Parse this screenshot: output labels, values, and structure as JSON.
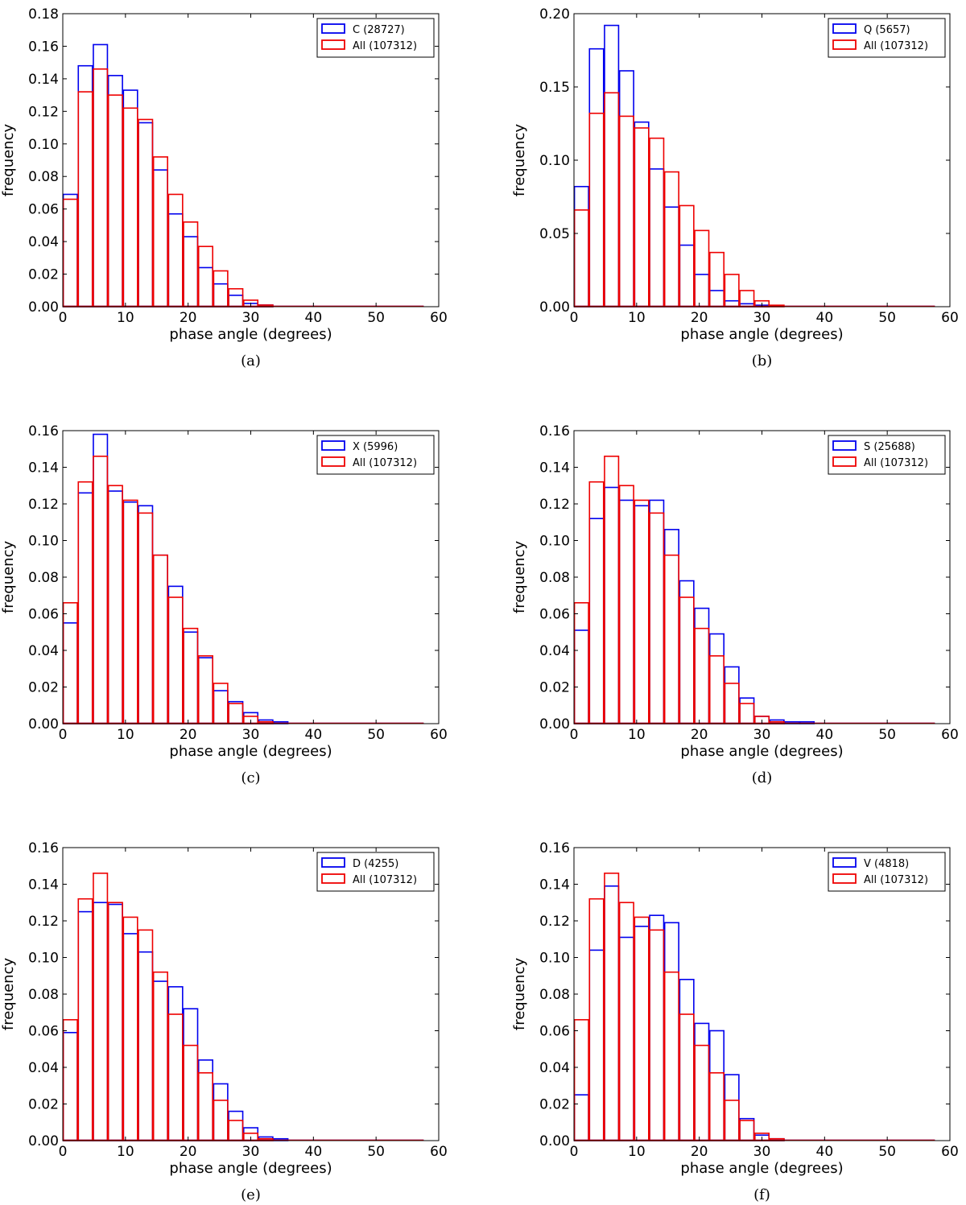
{
  "figure": {
    "bin_edges": [
      0,
      2.4,
      4.8,
      7.2,
      9.6,
      12,
      14.4,
      16.8,
      19.2,
      21.6,
      24,
      26.4,
      28.8,
      31.2,
      33.6,
      36,
      38.4,
      40.8,
      43.2,
      45.6,
      48,
      50.4,
      52.8,
      55.2,
      57.6
    ],
    "colors": {
      "blue": "#0000ee",
      "red": "#ee0000"
    }
  },
  "chart_data": [
    {
      "type": "bar",
      "panel_label": "(a)",
      "xlabel": "phase angle (degrees)",
      "ylabel": "frequency",
      "xlim": [
        0,
        60
      ],
      "ylim": [
        0,
        0.18
      ],
      "xticks": [
        0,
        10,
        20,
        30,
        40,
        50,
        60
      ],
      "yticks": [
        "0.00",
        "0.02",
        "0.04",
        "0.06",
        "0.08",
        "0.10",
        "0.12",
        "0.14",
        "0.16",
        "0.18"
      ],
      "legend_position": "top-right",
      "series": [
        {
          "name": "C (28727)",
          "color": "blue",
          "values": [
            0.069,
            0.148,
            0.161,
            0.142,
            0.133,
            0.113,
            0.084,
            0.057,
            0.043,
            0.024,
            0.014,
            0.007,
            0.002,
            0.001,
            0,
            0,
            0,
            0,
            0,
            0,
            0,
            0,
            0,
            0
          ]
        },
        {
          "name": "All (107312)",
          "color": "red",
          "values": [
            0.066,
            0.132,
            0.146,
            0.13,
            0.122,
            0.115,
            0.092,
            0.069,
            0.052,
            0.037,
            0.022,
            0.011,
            0.004,
            0.001,
            0,
            0,
            0,
            0,
            0,
            0,
            0,
            0,
            0,
            0
          ]
        }
      ]
    },
    {
      "type": "bar",
      "panel_label": "(b)",
      "xlabel": "phase angle (degrees)",
      "ylabel": "frequency",
      "xlim": [
        0,
        60
      ],
      "ylim": [
        0,
        0.2
      ],
      "xticks": [
        0,
        10,
        20,
        30,
        40,
        50,
        60
      ],
      "yticks": [
        "0.00",
        "0.05",
        "0.10",
        "0.15",
        "0.20"
      ],
      "legend_position": "top-right",
      "series": [
        {
          "name": "Q (5657)",
          "color": "blue",
          "values": [
            0.082,
            0.176,
            0.192,
            0.161,
            0.126,
            0.094,
            0.068,
            0.042,
            0.022,
            0.011,
            0.004,
            0.002,
            0.001,
            0,
            0,
            0,
            0,
            0,
            0,
            0,
            0,
            0,
            0,
            0
          ]
        },
        {
          "name": "All (107312)",
          "color": "red",
          "values": [
            0.066,
            0.132,
            0.146,
            0.13,
            0.122,
            0.115,
            0.092,
            0.069,
            0.052,
            0.037,
            0.022,
            0.011,
            0.004,
            0.001,
            0,
            0,
            0,
            0,
            0,
            0,
            0,
            0,
            0,
            0
          ]
        }
      ]
    },
    {
      "type": "bar",
      "panel_label": "(c)",
      "xlabel": "phase angle (degrees)",
      "ylabel": "frequency",
      "xlim": [
        0,
        60
      ],
      "ylim": [
        0,
        0.16
      ],
      "xticks": [
        0,
        10,
        20,
        30,
        40,
        50,
        60
      ],
      "yticks": [
        "0.00",
        "0.02",
        "0.04",
        "0.06",
        "0.08",
        "0.10",
        "0.12",
        "0.14",
        "0.16"
      ],
      "legend_position": "top-right",
      "series": [
        {
          "name": "X (5996)",
          "color": "blue",
          "values": [
            0.055,
            0.126,
            0.158,
            0.127,
            0.121,
            0.119,
            0.092,
            0.075,
            0.05,
            0.036,
            0.018,
            0.012,
            0.006,
            0.002,
            0.001,
            0,
            0,
            0,
            0,
            0,
            0,
            0,
            0,
            0
          ]
        },
        {
          "name": "All (107312)",
          "color": "red",
          "values": [
            0.066,
            0.132,
            0.146,
            0.13,
            0.122,
            0.115,
            0.092,
            0.069,
            0.052,
            0.037,
            0.022,
            0.011,
            0.004,
            0.001,
            0,
            0,
            0,
            0,
            0,
            0,
            0,
            0,
            0,
            0
          ]
        }
      ]
    },
    {
      "type": "bar",
      "panel_label": "(d)",
      "xlabel": "phase angle (degrees)",
      "ylabel": "frequency",
      "xlim": [
        0,
        60
      ],
      "ylim": [
        0,
        0.16
      ],
      "xticks": [
        0,
        10,
        20,
        30,
        40,
        50,
        60
      ],
      "yticks": [
        "0.00",
        "0.02",
        "0.04",
        "0.06",
        "0.08",
        "0.10",
        "0.12",
        "0.14",
        "0.16"
      ],
      "legend_position": "top-right",
      "series": [
        {
          "name": "S (25688)",
          "color": "blue",
          "values": [
            0.051,
            0.112,
            0.129,
            0.122,
            0.119,
            0.122,
            0.106,
            0.078,
            0.063,
            0.049,
            0.031,
            0.014,
            0.004,
            0.002,
            0.001,
            0.001,
            0,
            0,
            0,
            0,
            0,
            0,
            0,
            0
          ]
        },
        {
          "name": "All (107312)",
          "color": "red",
          "values": [
            0.066,
            0.132,
            0.146,
            0.13,
            0.122,
            0.115,
            0.092,
            0.069,
            0.052,
            0.037,
            0.022,
            0.011,
            0.004,
            0.001,
            0,
            0,
            0,
            0,
            0,
            0,
            0,
            0,
            0,
            0
          ]
        }
      ]
    },
    {
      "type": "bar",
      "panel_label": "(e)",
      "xlabel": "phase angle (degrees)",
      "ylabel": "frequency",
      "xlim": [
        0,
        60
      ],
      "ylim": [
        0,
        0.16
      ],
      "xticks": [
        0,
        10,
        20,
        30,
        40,
        50,
        60
      ],
      "yticks": [
        "0.00",
        "0.02",
        "0.04",
        "0.06",
        "0.08",
        "0.10",
        "0.12",
        "0.14",
        "0.16"
      ],
      "legend_position": "top-right",
      "series": [
        {
          "name": "D (4255)",
          "color": "blue",
          "values": [
            0.059,
            0.125,
            0.13,
            0.129,
            0.113,
            0.103,
            0.087,
            0.084,
            0.072,
            0.044,
            0.031,
            0.016,
            0.007,
            0.002,
            0.001,
            0,
            0,
            0,
            0,
            0,
            0,
            0,
            0,
            0
          ]
        },
        {
          "name": "All (107312)",
          "color": "red",
          "values": [
            0.066,
            0.132,
            0.146,
            0.13,
            0.122,
            0.115,
            0.092,
            0.069,
            0.052,
            0.037,
            0.022,
            0.011,
            0.004,
            0.001,
            0,
            0,
            0,
            0,
            0,
            0,
            0,
            0,
            0,
            0
          ]
        }
      ]
    },
    {
      "type": "bar",
      "panel_label": "(f)",
      "xlabel": "phase angle (degrees)",
      "ylabel": "frequency",
      "xlim": [
        0,
        60
      ],
      "ylim": [
        0,
        0.16
      ],
      "xticks": [
        0,
        10,
        20,
        30,
        40,
        50,
        60
      ],
      "yticks": [
        "0.00",
        "0.02",
        "0.04",
        "0.06",
        "0.08",
        "0.10",
        "0.12",
        "0.14",
        "0.16"
      ],
      "legend_position": "top-right",
      "series": [
        {
          "name": "V (4818)",
          "color": "blue",
          "values": [
            0.025,
            0.104,
            0.139,
            0.111,
            0.117,
            0.123,
            0.119,
            0.088,
            0.064,
            0.06,
            0.036,
            0.012,
            0.003,
            0.001,
            0,
            0,
            0,
            0,
            0,
            0,
            0,
            0,
            0,
            0
          ]
        },
        {
          "name": "All (107312)",
          "color": "red",
          "values": [
            0.066,
            0.132,
            0.146,
            0.13,
            0.122,
            0.115,
            0.092,
            0.069,
            0.052,
            0.037,
            0.022,
            0.011,
            0.004,
            0.001,
            0,
            0,
            0,
            0,
            0,
            0,
            0,
            0,
            0,
            0
          ]
        }
      ]
    }
  ]
}
